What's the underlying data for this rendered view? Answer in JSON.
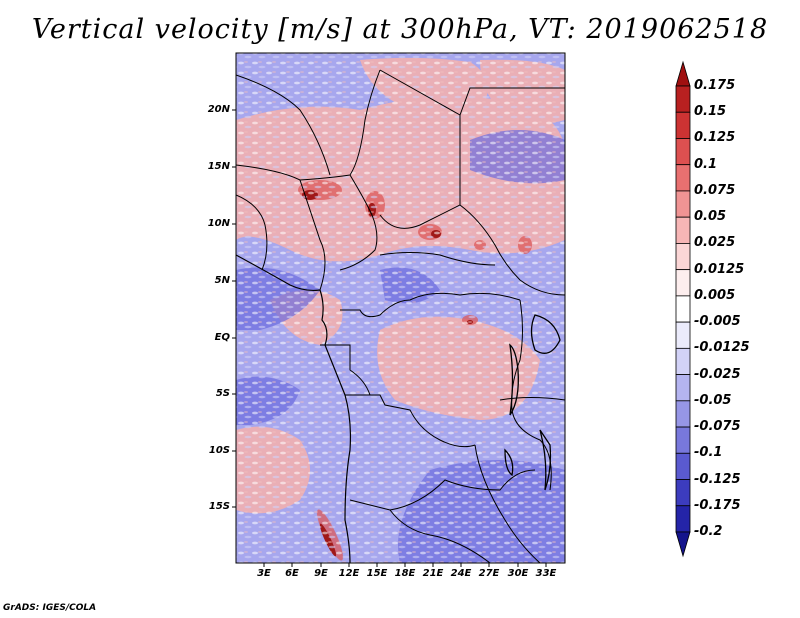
{
  "title": "Vertical velocity [m/s] at 300hPa, VT: 2019062518",
  "credit": "GrADS: IGES/COLA",
  "lat_labels": [
    "20N",
    "15N",
    "10N",
    "5N",
    "EQ",
    "5S",
    "10S",
    "15S"
  ],
  "lon_labels": [
    "3E",
    "6E",
    "9E",
    "12E",
    "15E",
    "18E",
    "21E",
    "24E",
    "27E",
    "30E",
    "33E"
  ],
  "colorbar": {
    "levels": [
      "0.175",
      "0.15",
      "0.125",
      "0.1",
      "0.075",
      "0.05",
      "0.025",
      "0.0125",
      "0.005",
      "-0.005",
      "-0.0125",
      "-0.025",
      "-0.05",
      "-0.075",
      "-0.1",
      "-0.125",
      "-0.175",
      "-0.2"
    ],
    "colors": [
      "#a01010",
      "#b82020",
      "#cc3333",
      "#dd5050",
      "#e87070",
      "#f09494",
      "#f7b6b6",
      "#fbd6d6",
      "#fdeeee",
      "#ffffff",
      "#ebebfb",
      "#d2d2f7",
      "#b4b4f0",
      "#9696e6",
      "#7878dc",
      "#5a5ad0",
      "#3c3cbe",
      "#2424a8",
      "#14148c"
    ]
  },
  "colors": {
    "positive": "#e06868",
    "negative": "#7070e0",
    "border": "#000000"
  }
}
